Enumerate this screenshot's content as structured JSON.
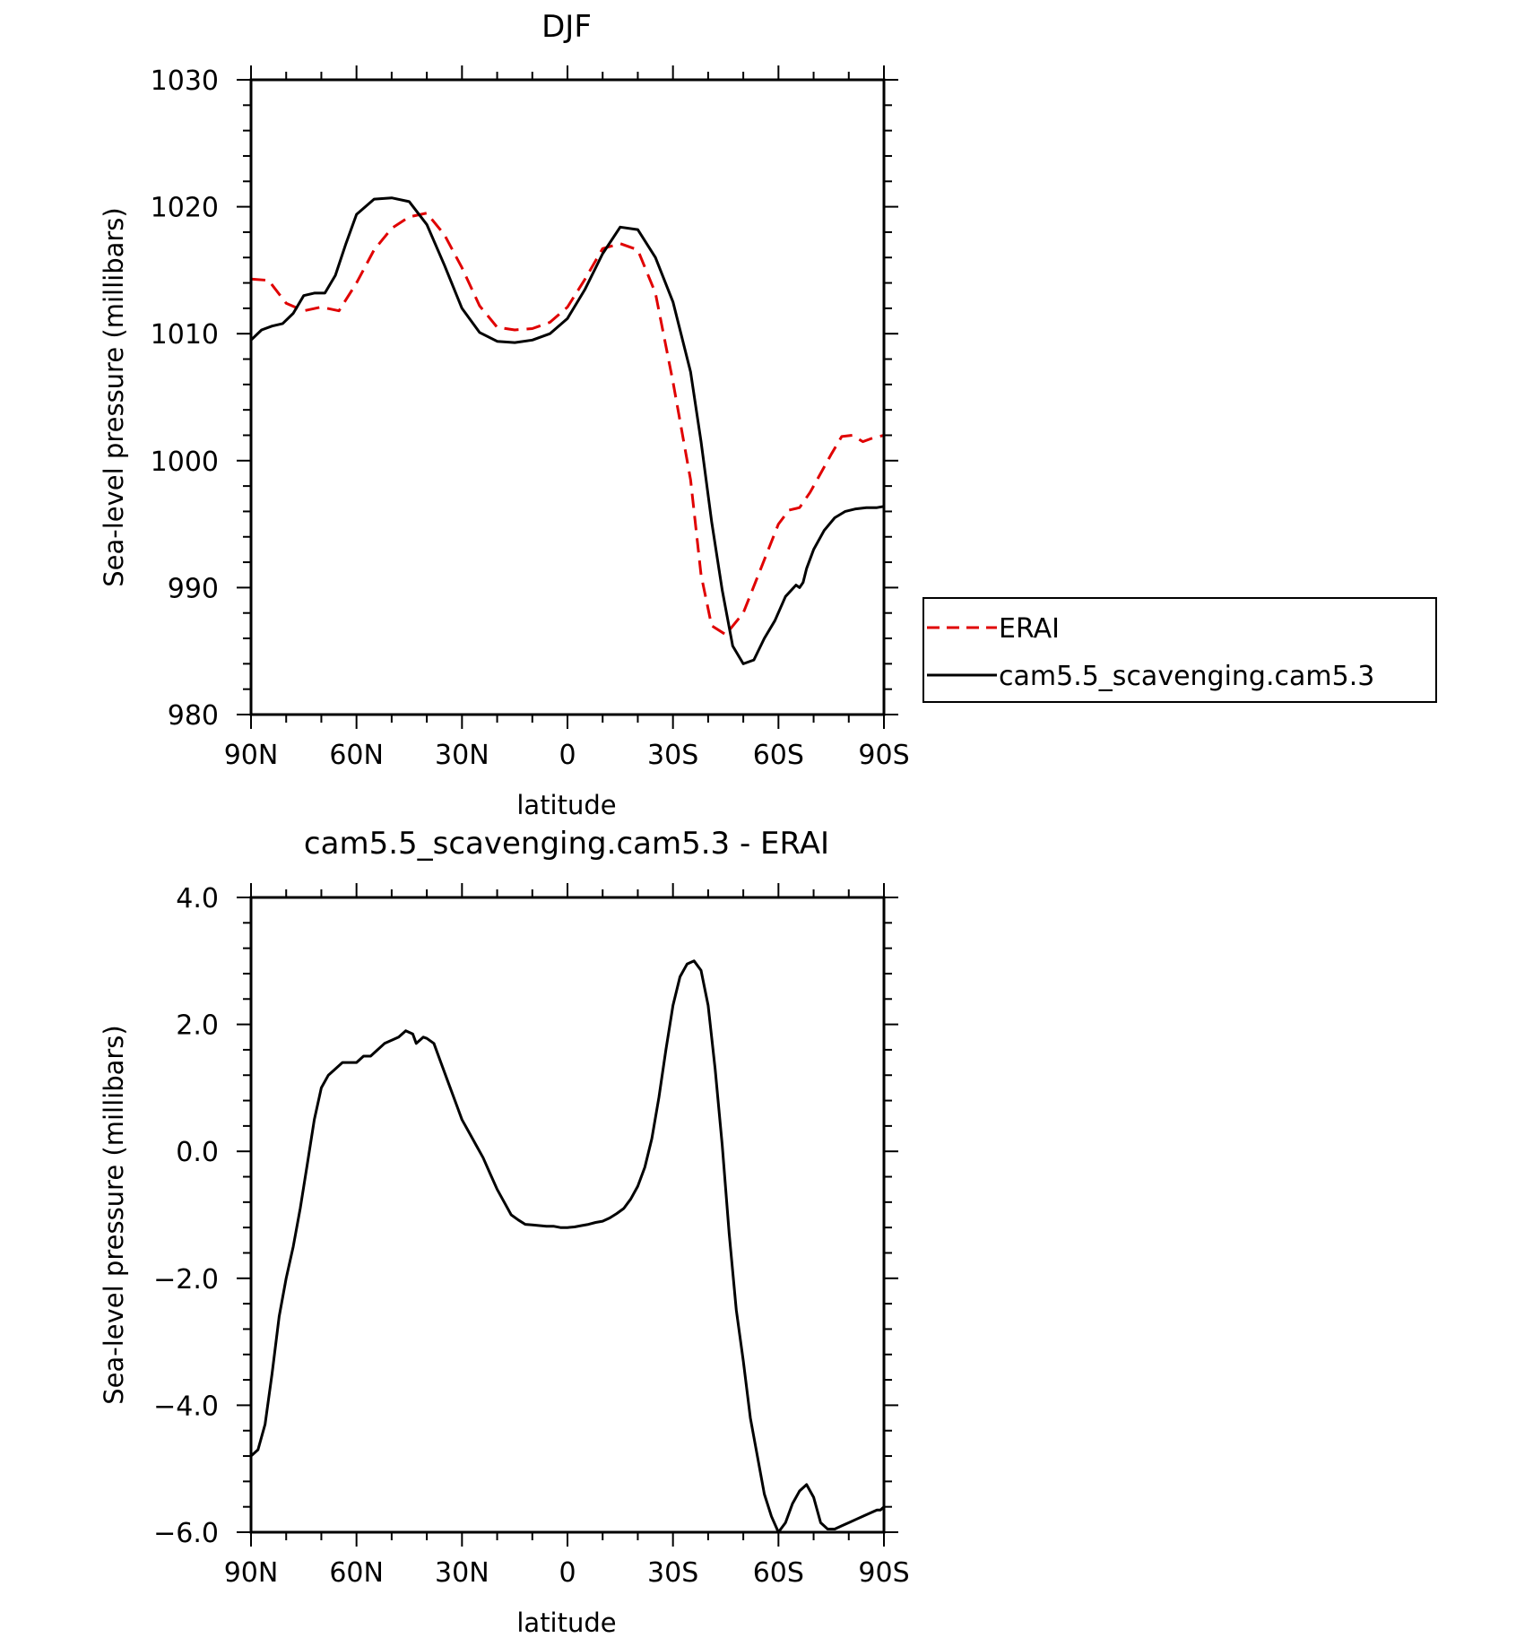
{
  "chart_data": [
    {
      "type": "line",
      "title": "DJF",
      "xlabel": "latitude",
      "ylabel": "Sea-level pressure (millibars)",
      "xticks": [
        "90N",
        "60N",
        "30N",
        "0",
        "30S",
        "60S",
        "90S"
      ],
      "yticks": [
        "980",
        "990",
        "1000",
        "1010",
        "1020",
        "1030"
      ],
      "xlim": [
        90,
        -90
      ],
      "ylim": [
        980,
        1030
      ],
      "legend_position": "right",
      "series": [
        {
          "name": "ERAI",
          "color": "#e00000",
          "dash": "dashed",
          "x": [
            90,
            85,
            80,
            75,
            70,
            65,
            60,
            55,
            50,
            45,
            40,
            35,
            30,
            25,
            20,
            15,
            10,
            5,
            0,
            -5,
            -10,
            -15,
            -20,
            -25,
            -30,
            -35,
            -38,
            -41,
            -45,
            -50,
            -55,
            -60,
            -63,
            -66,
            -69,
            -72,
            -75,
            -78,
            -81,
            -84,
            -87,
            -90
          ],
          "y": [
            1014.3,
            1014.2,
            1012.4,
            1011.8,
            1012.1,
            1011.8,
            1014.0,
            1016.6,
            1018.3,
            1019.2,
            1019.5,
            1017.8,
            1015.2,
            1012.2,
            1010.5,
            1010.3,
            1010.4,
            1010.9,
            1012.1,
            1014.3,
            1016.7,
            1017.1,
            1016.6,
            1013.2,
            1006.2,
            998.5,
            991.0,
            987.0,
            986.3,
            988.0,
            991.5,
            995.0,
            996.1,
            996.3,
            997.5,
            999.0,
            1000.5,
            1001.9,
            1002.0,
            1001.5,
            1001.8,
            1002.0
          ]
        },
        {
          "name": "cam5.5_scavenging.cam5.3",
          "color": "#000000",
          "dash": "solid",
          "x": [
            90,
            87,
            84,
            81,
            78,
            75,
            72,
            69,
            66,
            63,
            60,
            55,
            50,
            45,
            40,
            35,
            30,
            25,
            20,
            15,
            10,
            5,
            0,
            -5,
            -10,
            -15,
            -20,
            -25,
            -30,
            -35,
            -38,
            -41,
            -44,
            -47,
            -50,
            -53,
            -56,
            -59,
            -62,
            -65,
            -66,
            -67,
            -68,
            -70,
            -73,
            -76,
            -79,
            -82,
            -85,
            -88,
            -90
          ],
          "y": [
            1009.5,
            1010.3,
            1010.6,
            1010.8,
            1011.6,
            1013.0,
            1013.2,
            1013.2,
            1014.6,
            1017.1,
            1019.4,
            1020.6,
            1020.7,
            1020.4,
            1018.6,
            1015.4,
            1012.0,
            1010.1,
            1009.4,
            1009.3,
            1009.5,
            1010.0,
            1011.2,
            1013.5,
            1016.3,
            1018.4,
            1018.2,
            1016.0,
            1012.5,
            1007.0,
            1001.5,
            995.2,
            989.8,
            985.4,
            984.0,
            984.3,
            986.0,
            987.4,
            989.3,
            990.2,
            990.0,
            990.4,
            991.5,
            993.0,
            994.5,
            995.5,
            996.0,
            996.2,
            996.3,
            996.3,
            996.4
          ]
        }
      ]
    },
    {
      "type": "line",
      "title": "cam5.5_scavenging.cam5.3 - ERAI",
      "xlabel": "latitude",
      "ylabel": "Sea-level pressure (millibars)",
      "xticks": [
        "90N",
        "60N",
        "30N",
        "0",
        "30S",
        "60S",
        "90S"
      ],
      "yticks": [
        "−6.0",
        "−4.0",
        "−2.0",
        "0.0",
        "2.0",
        "4.0"
      ],
      "xlim": [
        90,
        -90
      ],
      "ylim": [
        -6,
        4
      ],
      "series": [
        {
          "color": "#000000",
          "dash": "solid",
          "x": [
            90,
            88,
            86,
            84,
            82,
            80,
            78,
            76,
            74,
            72,
            70,
            68,
            66,
            64,
            62,
            60,
            58,
            56,
            54,
            52,
            50,
            48,
            46,
            44,
            43,
            42,
            41,
            40,
            38,
            36,
            34,
            32,
            30,
            28,
            26,
            24,
            22,
            20,
            18,
            16,
            14,
            12,
            10,
            8,
            6,
            4,
            2,
            0,
            -2,
            -4,
            -6,
            -8,
            -10,
            -12,
            -14,
            -16,
            -18,
            -20,
            -22,
            -24,
            -26,
            -28,
            -30,
            -32,
            -34,
            -36,
            -38,
            -40,
            -42,
            -44,
            -46,
            -48,
            -50,
            -52,
            -54,
            -56,
            -58,
            -60,
            -62,
            -64,
            -66,
            -68,
            -70,
            -72,
            -74,
            -76,
            -78,
            -80,
            -82,
            -84,
            -86,
            -88,
            -89,
            -90
          ],
          "y": [
            -4.8,
            -4.7,
            -4.3,
            -3.5,
            -2.6,
            -2.0,
            -1.5,
            -0.9,
            -0.2,
            0.5,
            1.0,
            1.2,
            1.3,
            1.4,
            1.4,
            1.4,
            1.5,
            1.5,
            1.6,
            1.7,
            1.75,
            1.8,
            1.9,
            1.85,
            1.7,
            1.75,
            1.8,
            1.78,
            1.7,
            1.4,
            1.1,
            0.8,
            0.5,
            0.3,
            0.1,
            -0.1,
            -0.35,
            -0.6,
            -0.8,
            -1.0,
            -1.08,
            -1.15,
            -1.16,
            -1.17,
            -1.18,
            -1.18,
            -1.2,
            -1.2,
            -1.19,
            -1.17,
            -1.15,
            -1.12,
            -1.1,
            -1.05,
            -0.98,
            -0.9,
            -0.75,
            -0.55,
            -0.25,
            0.2,
            0.85,
            1.6,
            2.3,
            2.75,
            2.95,
            3.0,
            2.85,
            2.3,
            1.3,
            0.1,
            -1.3,
            -2.5,
            -3.3,
            -4.2,
            -4.8,
            -5.4,
            -5.75,
            -6.0,
            -5.85,
            -5.55,
            -5.35,
            -5.25,
            -5.45,
            -5.85,
            -5.95,
            -5.95,
            -5.9,
            -5.85,
            -5.8,
            -5.75,
            -5.7,
            -5.65,
            -5.65,
            -5.6
          ]
        }
      ]
    }
  ]
}
